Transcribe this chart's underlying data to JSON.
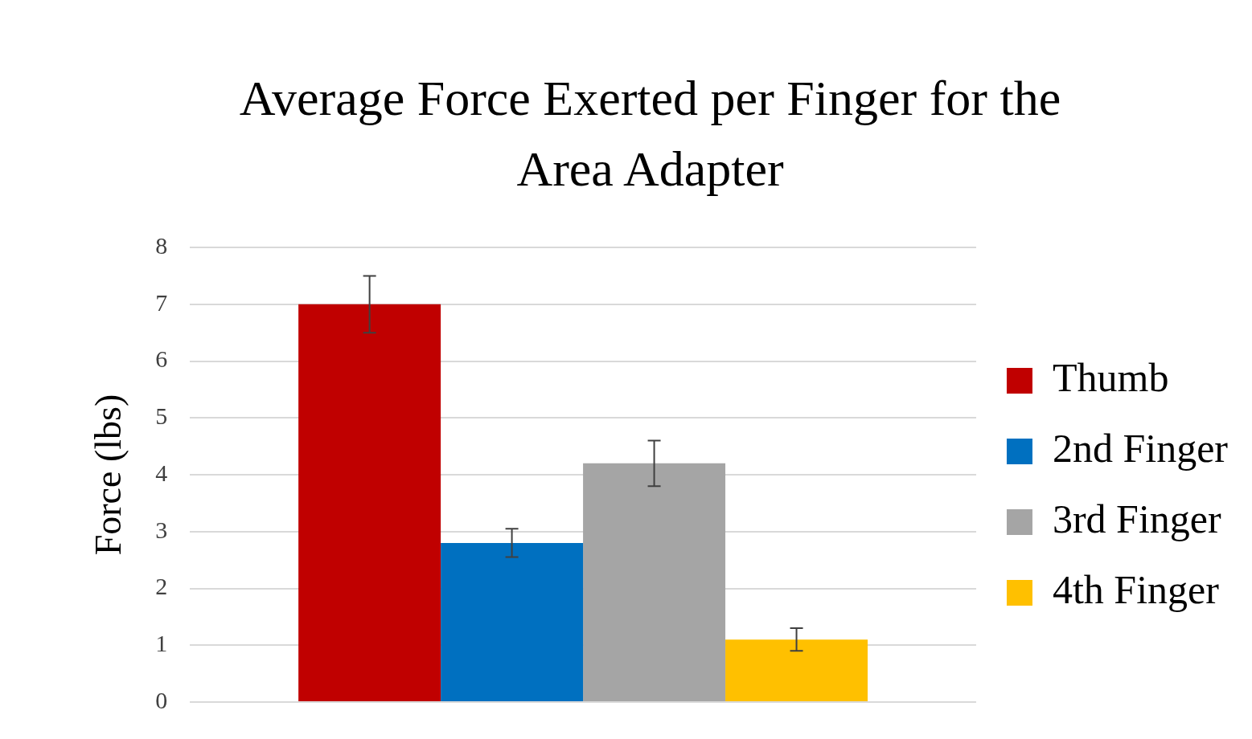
{
  "chart_data": {
    "type": "bar",
    "title": "Average Force Exerted per Finger for the Area Adapter",
    "ylabel": "Force (lbs)",
    "categories": [
      null
    ],
    "series": [
      {
        "name": "Thumb",
        "color": "#c00000",
        "values": [
          7.0
        ],
        "errors": [
          0.5
        ]
      },
      {
        "name": "2nd Finger",
        "color": "#0070c0",
        "values": [
          2.8
        ],
        "errors": [
          0.25
        ]
      },
      {
        "name": "3rd Finger",
        "color": "#a5a5a5",
        "values": [
          4.2
        ],
        "errors": [
          0.4
        ]
      },
      {
        "name": "4th Finger",
        "color": "#ffc000",
        "values": [
          1.1
        ],
        "errors": [
          0.2
        ]
      }
    ],
    "ylim": [
      0,
      8
    ],
    "yticks": [
      0,
      1,
      2,
      3,
      4,
      5,
      6,
      7,
      8
    ],
    "grid": "y",
    "legend": "right"
  }
}
